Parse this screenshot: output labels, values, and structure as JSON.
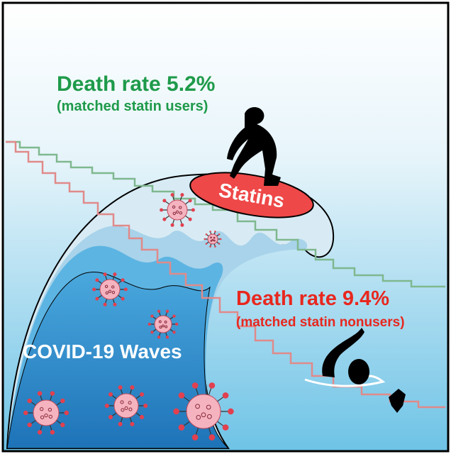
{
  "statin_users": {
    "title": "Death rate 5.2%",
    "subtitle": "(matched statin users)"
  },
  "statin_nonusers": {
    "title": "Death rate 9.4%",
    "subtitle": "(matched statin nonusers)"
  },
  "board_label": "Statins",
  "wave_label": "COVID-19 Waves"
}
